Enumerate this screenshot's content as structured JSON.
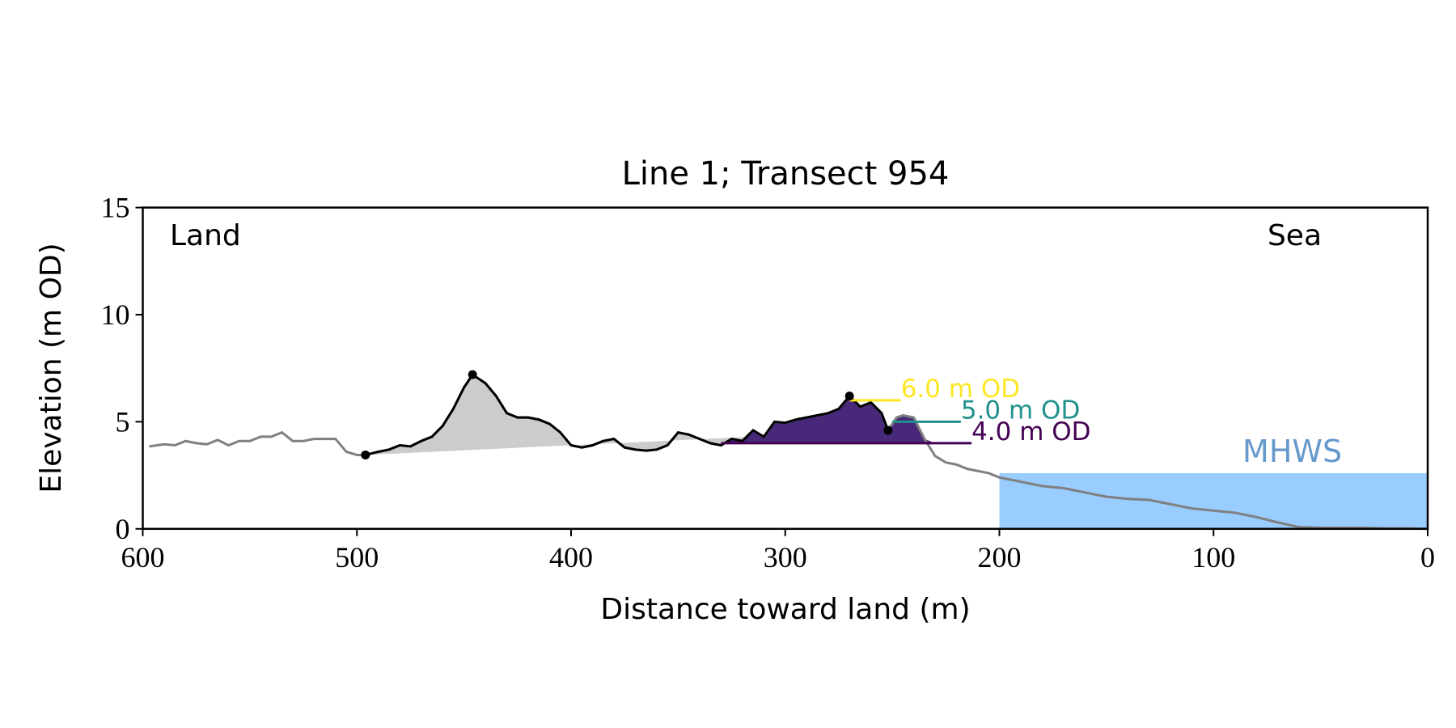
{
  "chart_data": {
    "type": "line",
    "title": "Line 1; Transect 954",
    "xlabel": "Distance toward land (m)",
    "ylabel": "Elevation (m OD)",
    "xlim": [
      600,
      0
    ],
    "ylim": [
      0,
      15
    ],
    "xticks": [
      600,
      500,
      400,
      300,
      200,
      100,
      0
    ],
    "yticks": [
      0,
      5,
      10,
      15
    ],
    "annotations": {
      "land": "Land",
      "sea": "Sea"
    },
    "profile": {
      "color": "#808080",
      "x": [
        597,
        590,
        585,
        580,
        575,
        570,
        565,
        560,
        555,
        550,
        545,
        540,
        535,
        530,
        525,
        520,
        515,
        510,
        505,
        500,
        496,
        490,
        485,
        480,
        475,
        470,
        465,
        460,
        455,
        450,
        446,
        440,
        435,
        430,
        425,
        420,
        415,
        410,
        405,
        400,
        395,
        390,
        385,
        380,
        375,
        370,
        365,
        360,
        355,
        350,
        345,
        340,
        335,
        330,
        325,
        320,
        315,
        310,
        305,
        300,
        295,
        290,
        285,
        280,
        275,
        270,
        265,
        260,
        255,
        252,
        248,
        245,
        240,
        235,
        230,
        225,
        220,
        215,
        205,
        200,
        190,
        180,
        170,
        160,
        150,
        140,
        130,
        120,
        110,
        100,
        90,
        80,
        70,
        60,
        50,
        40,
        30,
        20,
        10,
        0
      ],
      "values": [
        3.85,
        3.95,
        3.9,
        4.1,
        4.0,
        3.95,
        4.15,
        3.9,
        4.1,
        4.1,
        4.3,
        4.3,
        4.5,
        4.1,
        4.1,
        4.2,
        4.2,
        4.2,
        3.6,
        3.45,
        3.45,
        3.6,
        3.7,
        3.9,
        3.85,
        4.1,
        4.3,
        4.8,
        5.6,
        6.6,
        7.2,
        6.8,
        6.2,
        5.4,
        5.2,
        5.2,
        5.1,
        4.9,
        4.5,
        3.9,
        3.8,
        3.9,
        4.1,
        4.2,
        3.8,
        3.7,
        3.65,
        3.7,
        3.9,
        4.5,
        4.4,
        4.2,
        4.0,
        3.9,
        4.2,
        4.1,
        4.6,
        4.3,
        5.0,
        4.95,
        5.1,
        5.2,
        5.3,
        5.4,
        5.6,
        6.2,
        5.7,
        5.9,
        5.4,
        4.6,
        5.2,
        5.3,
        5.2,
        4.2,
        3.4,
        3.1,
        3.0,
        2.8,
        2.6,
        2.4,
        2.2,
        2.0,
        1.9,
        1.7,
        1.5,
        1.4,
        1.35,
        1.15,
        0.95,
        0.85,
        0.75,
        0.55,
        0.3,
        0.08,
        0.05,
        0.05,
        0.05,
        0.02,
        0.02,
        0.0
      ]
    },
    "dune": {
      "color": "#000000",
      "fill_color": "#cccccc",
      "x": [
        496,
        490,
        485,
        480,
        475,
        470,
        465,
        460,
        455,
        450,
        446,
        440,
        435,
        430,
        425,
        420,
        415,
        410,
        405,
        400,
        395,
        390,
        385,
        380,
        375,
        370,
        365,
        360,
        355,
        350,
        345,
        340,
        335,
        330,
        325,
        320,
        315,
        310,
        305,
        300,
        295,
        290,
        285,
        280,
        275,
        270,
        265,
        260,
        255,
        252
      ],
      "values": [
        3.45,
        3.6,
        3.7,
        3.9,
        3.85,
        4.1,
        4.3,
        4.8,
        5.6,
        6.6,
        7.2,
        6.8,
        6.2,
        5.4,
        5.2,
        5.2,
        5.1,
        4.9,
        4.5,
        3.9,
        3.8,
        3.9,
        4.1,
        4.2,
        3.8,
        3.7,
        3.65,
        3.7,
        3.9,
        4.5,
        4.4,
        4.2,
        4.0,
        3.9,
        4.2,
        4.1,
        4.6,
        4.3,
        5.0,
        4.95,
        5.1,
        5.2,
        5.3,
        5.4,
        5.6,
        6.2,
        5.7,
        5.9,
        5.4,
        4.6
      ]
    },
    "markers": {
      "color": "#000000",
      "x": [
        496,
        446,
        270,
        252
      ],
      "values": [
        3.45,
        7.2,
        6.2,
        4.6
      ]
    },
    "levels": [
      {
        "label": "6.0 m OD",
        "value": 6.0,
        "color": "#fde725",
        "xrange": [
          270,
          246
        ],
        "fill": false
      },
      {
        "label": "5.0 m OD",
        "value": 5.0,
        "color": "#21918c",
        "xrange": [
          250,
          218
        ],
        "fill": false
      },
      {
        "label": "4.0 m OD",
        "value": 4.0,
        "color": "#440154",
        "xrange": [
          330,
          213
        ],
        "fill": true,
        "fill_color": "#482878"
      }
    ],
    "mhws": {
      "label": "MHWS",
      "value": 2.6,
      "xrange": [
        200,
        0
      ],
      "color": "#99ccff",
      "label_color": "#6699cc"
    }
  }
}
